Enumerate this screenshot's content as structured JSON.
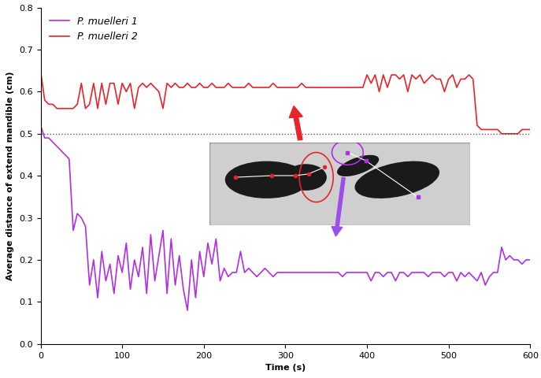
{
  "chart_data": {
    "type": "line",
    "x_label": "Time (s)",
    "y_label": "Average distance of extend mandible (cm)",
    "x": [
      0,
      5,
      10,
      15,
      20,
      25,
      30,
      35,
      40,
      45,
      50,
      55,
      60,
      65,
      70,
      75,
      80,
      85,
      90,
      95,
      100,
      105,
      110,
      115,
      120,
      125,
      130,
      135,
      140,
      145,
      150,
      155,
      160,
      165,
      170,
      175,
      180,
      185,
      190,
      195,
      200,
      205,
      210,
      215,
      220,
      225,
      230,
      235,
      240,
      245,
      250,
      255,
      260,
      265,
      270,
      275,
      280,
      285,
      290,
      295,
      300,
      305,
      310,
      315,
      320,
      325,
      330,
      335,
      340,
      345,
      350,
      355,
      360,
      365,
      370,
      375,
      380,
      385,
      390,
      395,
      400,
      405,
      410,
      415,
      420,
      425,
      430,
      435,
      440,
      445,
      450,
      455,
      460,
      465,
      470,
      475,
      480,
      485,
      490,
      495,
      500,
      505,
      510,
      515,
      520,
      525,
      530,
      535,
      540,
      545,
      550,
      555,
      560,
      565,
      570,
      575,
      580,
      585,
      590,
      595,
      600
    ],
    "series": [
      {
        "name": "P. muelleri 1",
        "color": "#b02ee6",
        "values": [
          0.52,
          0.49,
          0.49,
          0.48,
          0.47,
          0.46,
          0.45,
          0.44,
          0.27,
          0.31,
          0.3,
          0.28,
          0.14,
          0.2,
          0.11,
          0.22,
          0.15,
          0.19,
          0.12,
          0.21,
          0.17,
          0.24,
          0.13,
          0.2,
          0.16,
          0.23,
          0.12,
          0.26,
          0.15,
          0.21,
          0.27,
          0.12,
          0.25,
          0.14,
          0.21,
          0.13,
          0.08,
          0.2,
          0.11,
          0.22,
          0.16,
          0.24,
          0.19,
          0.25,
          0.15,
          0.18,
          0.16,
          0.17,
          0.17,
          0.22,
          0.17,
          0.18,
          0.17,
          0.16,
          0.17,
          0.18,
          0.17,
          0.16,
          0.17,
          0.17,
          0.17,
          0.17,
          0.17,
          0.17,
          0.17,
          0.17,
          0.17,
          0.17,
          0.17,
          0.17,
          0.17,
          0.17,
          0.17,
          0.17,
          0.16,
          0.17,
          0.17,
          0.17,
          0.17,
          0.17,
          0.17,
          0.15,
          0.17,
          0.17,
          0.16,
          0.17,
          0.17,
          0.15,
          0.17,
          0.17,
          0.16,
          0.17,
          0.17,
          0.17,
          0.17,
          0.16,
          0.17,
          0.17,
          0.17,
          0.16,
          0.17,
          0.17,
          0.15,
          0.17,
          0.16,
          0.17,
          0.16,
          0.15,
          0.17,
          0.14,
          0.16,
          0.17,
          0.17,
          0.23,
          0.2,
          0.21,
          0.2,
          0.2,
          0.19,
          0.2,
          0.2
        ]
      },
      {
        "name": "P. muelleri 2",
        "color": "#e8232a",
        "values": [
          0.65,
          0.58,
          0.57,
          0.57,
          0.56,
          0.56,
          0.56,
          0.56,
          0.56,
          0.57,
          0.62,
          0.56,
          0.57,
          0.62,
          0.56,
          0.62,
          0.57,
          0.62,
          0.62,
          0.57,
          0.62,
          0.6,
          0.62,
          0.56,
          0.61,
          0.62,
          0.61,
          0.62,
          0.61,
          0.6,
          0.56,
          0.62,
          0.61,
          0.62,
          0.61,
          0.61,
          0.62,
          0.61,
          0.61,
          0.62,
          0.61,
          0.61,
          0.62,
          0.61,
          0.61,
          0.61,
          0.62,
          0.61,
          0.61,
          0.61,
          0.61,
          0.62,
          0.61,
          0.61,
          0.61,
          0.61,
          0.61,
          0.62,
          0.61,
          0.61,
          0.61,
          0.61,
          0.61,
          0.61,
          0.62,
          0.61,
          0.61,
          0.61,
          0.61,
          0.61,
          0.61,
          0.61,
          0.61,
          0.61,
          0.61,
          0.61,
          0.61,
          0.61,
          0.61,
          0.61,
          0.64,
          0.62,
          0.64,
          0.6,
          0.64,
          0.61,
          0.64,
          0.64,
          0.63,
          0.64,
          0.6,
          0.64,
          0.63,
          0.64,
          0.62,
          0.63,
          0.64,
          0.63,
          0.63,
          0.6,
          0.63,
          0.64,
          0.61,
          0.63,
          0.63,
          0.64,
          0.63,
          0.52,
          0.51,
          0.51,
          0.51,
          0.51,
          0.51,
          0.5,
          0.5,
          0.5,
          0.5,
          0.5,
          0.51,
          0.51,
          0.51
        ]
      }
    ],
    "reference_line": 0.5,
    "xlim": [
      0,
      600
    ],
    "xticks": [
      0,
      100,
      200,
      300,
      400,
      500,
      600
    ],
    "ylim": [
      0,
      0.8
    ],
    "yticks": [
      {
        "value": 0,
        "label": "0.0"
      },
      0.1,
      0.2,
      0.3,
      0.4,
      0.5,
      0.6,
      0.7,
      0.8
    ],
    "legend": "upper left",
    "grid": false
  }
}
